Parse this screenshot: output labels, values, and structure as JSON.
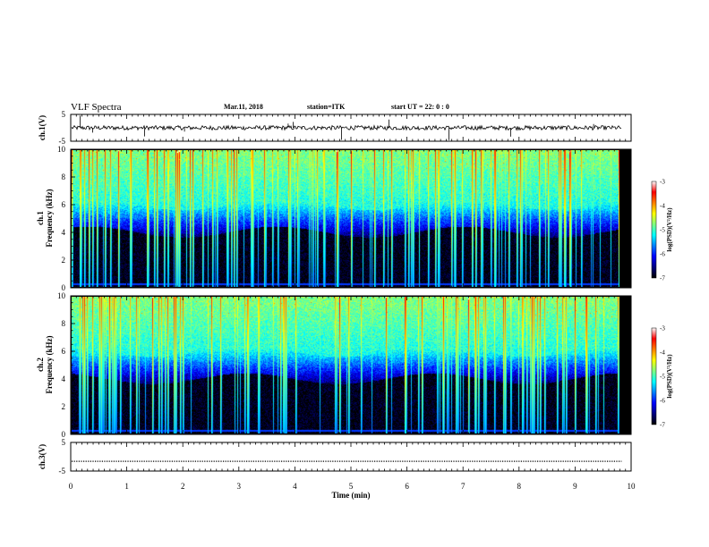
{
  "header": {
    "title": "VLF Spectra",
    "date": "Mar.11, 2018",
    "station": "station=ITK",
    "start": "start  UT =   22: 0  : 0"
  },
  "chart_data": [
    {
      "id": "ch1_waveform",
      "type": "line",
      "ylabel": "ch.1(V)",
      "ylim": [
        -5,
        5
      ],
      "yticks": [
        "5",
        "-5"
      ],
      "xlim": [
        0,
        10
      ],
      "data_extent": [
        0,
        9.83
      ],
      "baseline": 0,
      "description_values": "noisy waveform near 0 V with sferic spikes",
      "spikes": [
        {
          "x": 0.17,
          "y": 4.6
        },
        {
          "x": 0.39,
          "y": -1.8
        },
        {
          "x": 1.32,
          "y": -3.2
        },
        {
          "x": 2.03,
          "y": -1.4
        },
        {
          "x": 3.88,
          "y": 1.6
        },
        {
          "x": 3.97,
          "y": 2.2
        },
        {
          "x": 4.83,
          "y": -4.5
        },
        {
          "x": 5.68,
          "y": 3.1
        },
        {
          "x": 6.75,
          "y": -4.6
        },
        {
          "x": 7.85,
          "y": -3.3
        },
        {
          "x": 9.33,
          "y": 1.4
        }
      ]
    },
    {
      "id": "ch1_spectrogram",
      "type": "heatmap",
      "ylabel": "ch.1\nFrequency  (kHz)",
      "ylim": [
        0,
        10
      ],
      "yticks": [
        "0",
        "2",
        "4",
        "6",
        "8",
        "10"
      ],
      "xlim": [
        0,
        10
      ],
      "data_extent": [
        0,
        9.83
      ],
      "colorbar": {
        "range": [
          -7,
          -3
        ],
        "ticks": [
          "-3",
          "-4",
          "-5",
          "-6",
          "-7"
        ],
        "label": "log(PSD)(V²/Hz)"
      },
      "band_edge_khz": 4.5
    },
    {
      "id": "ch2_spectrogram",
      "type": "heatmap",
      "ylabel": "ch.2\nFrequency  (kHz)",
      "ylim": [
        0,
        10
      ],
      "yticks": [
        "0",
        "2",
        "4",
        "6",
        "8",
        "10"
      ],
      "xlim": [
        0,
        10
      ],
      "data_extent": [
        0,
        9.83
      ],
      "colorbar": {
        "range": [
          -7,
          -3
        ],
        "ticks": [
          "-3",
          "-4",
          "-5",
          "-6",
          "-7"
        ],
        "label": "log(PSD)(V²/Hz)"
      },
      "band_edge_khz": 4.5
    },
    {
      "id": "ch3_waveform",
      "type": "line",
      "ylabel": "ch.3(V)",
      "ylim": [
        -5,
        5
      ],
      "yticks": [
        "5",
        "-5"
      ],
      "xlim": [
        0,
        10
      ],
      "data_extent": [
        0,
        9.83
      ],
      "constant_value": -1.6
    }
  ],
  "xaxis": {
    "label": "Time  (min)",
    "ticks": [
      "0",
      "1",
      "2",
      "3",
      "4",
      "5",
      "6",
      "7",
      "8",
      "9",
      "10"
    ]
  },
  "colors": {
    "colormap": [
      "#000000",
      "#00007f",
      "#0000ff",
      "#0080ff",
      "#00ffff",
      "#80ff80",
      "#ffff00",
      "#ff8000",
      "#ff0000",
      "#ffffff"
    ]
  }
}
